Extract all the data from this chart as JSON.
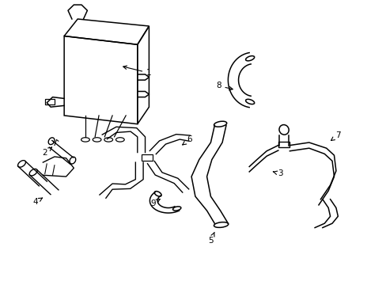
{
  "background_color": "#ffffff",
  "line_color": "#000000",
  "label_color": "#000000",
  "fig_width": 4.89,
  "fig_height": 3.6,
  "dpi": 100,
  "labels": {
    "1": [
      0.385,
      0.745,
      0.31,
      0.77
    ],
    "2": [
      0.115,
      0.455,
      0.135,
      0.475
    ],
    "4": [
      0.09,
      0.28,
      0.115,
      0.305
    ],
    "6": [
      0.49,
      0.44,
      0.5,
      0.46
    ],
    "7": [
      0.84,
      0.49,
      0.84,
      0.51
    ],
    "8": [
      0.565,
      0.67,
      0.6,
      0.66
    ],
    "3": [
      0.72,
      0.36,
      0.7,
      0.37
    ],
    "5": [
      0.545,
      0.085,
      0.545,
      0.11
    ],
    "9": [
      0.395,
      0.265,
      0.42,
      0.285
    ]
  }
}
